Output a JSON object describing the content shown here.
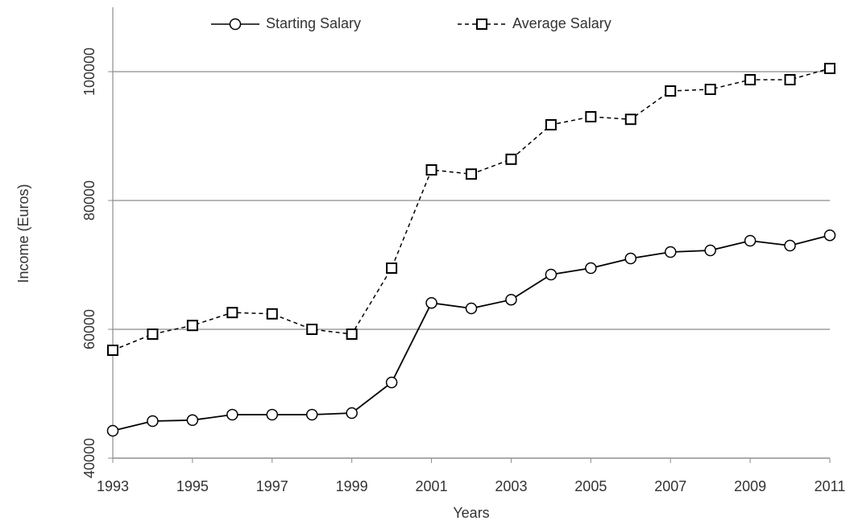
{
  "chart_data": {
    "type": "line",
    "xlabel": "Years",
    "ylabel": "Income (Euros)",
    "x": [
      1993,
      1994,
      1995,
      1996,
      1997,
      1998,
      1999,
      2000,
      2001,
      2002,
      2003,
      2004,
      2005,
      2006,
      2007,
      2008,
      2009,
      2010,
      2011
    ],
    "xlim": [
      1993,
      2011
    ],
    "xticks": [
      1993,
      1995,
      1997,
      1999,
      2001,
      2003,
      2005,
      2007,
      2009,
      2011
    ],
    "ylim": [
      40000,
      110000
    ],
    "yticks": [
      40000,
      60000,
      80000,
      100000
    ],
    "grid": true,
    "legend": "top",
    "series": [
      {
        "name": "Starting Salary",
        "color": "#000000",
        "line_style": "solid",
        "marker": "circle",
        "values": [
          44250,
          45750,
          45900,
          46750,
          46750,
          46750,
          47000,
          51750,
          64100,
          63250,
          64600,
          68500,
          69500,
          71000,
          72000,
          72250,
          73750,
          73000,
          74600
        ]
      },
      {
        "name": "Average Salary",
        "color": "#000000",
        "line_style": "dashed",
        "marker": "square",
        "values": [
          56750,
          59250,
          60600,
          62600,
          62400,
          60000,
          59250,
          69500,
          84750,
          84100,
          86400,
          91750,
          93000,
          92600,
          97000,
          97250,
          98750,
          98750,
          100500
        ]
      }
    ]
  }
}
